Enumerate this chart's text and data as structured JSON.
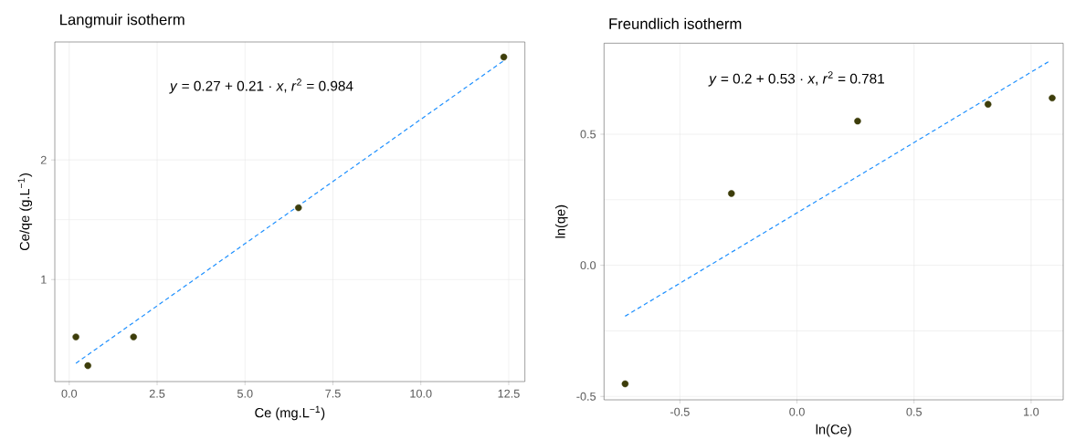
{
  "chart_data": [
    {
      "type": "scatter",
      "title": "Langmuir isotherm",
      "xlabel": "Ce (mg.L$^{−1}$)",
      "ylabel": "Ce/qe (g.L$^{−1}$)",
      "annotations": [
        "*y* = 0.27 + 0.21 · *x*,  *r*$^{2}$ = 0.984"
      ],
      "xlim": [
        -0.41,
        12.96
      ],
      "ylim": [
        0.147,
        2.986
      ],
      "xticks": [
        {
          "value": 0,
          "label": "0.0"
        },
        2.5,
        {
          "value": 5,
          "label": "5.0"
        },
        7.5,
        {
          "value": 10,
          "label": "10.0"
        },
        12.5
      ],
      "yticks": [
        1,
        2
      ],
      "grid": true,
      "series": [
        {
          "color": "#3d3d0a",
          "marker": "circle",
          "x": [
            0.19,
            0.53,
            1.83,
            6.52,
            12.36
          ],
          "values": [
            0.52,
            0.28,
            0.52,
            1.6,
            2.86
          ]
        },
        {
          "type": "line",
          "color": "#1e90ff",
          "line_style": "dashed",
          "x": [
            0.19,
            12.36
          ],
          "values": [
            0.3,
            2.83
          ]
        }
      ]
    },
    {
      "type": "scatter",
      "title": "Freundlich isotherm",
      "xlabel": "ln(Ce)",
      "ylabel": "ln(qe)",
      "annotations": [
        "*y* = 0.2 + 0.53 · *x*,  *r*$^{2}$ = 0.781"
      ],
      "xlim": [
        -0.824,
        1.137
      ],
      "ylim": [
        -0.513,
        0.847
      ],
      "xticks": [
        -0.5,
        {
          "value": 0,
          "label": "0.0"
        },
        0.5,
        {
          "value": 1,
          "label": "1.0"
        }
      ],
      "yticks": [
        -0.5,
        {
          "value": 0,
          "label": "0.0"
        },
        0.5
      ],
      "grid": true,
      "series": [
        {
          "color": "#3d3d0a",
          "marker": "circle",
          "x": [
            -0.734,
            -0.28,
            0.259,
            0.816,
            1.09
          ],
          "values": [
            -0.452,
            0.274,
            0.55,
            0.614,
            0.638
          ]
        },
        {
          "type": "line",
          "color": "#1e90ff",
          "line_style": "dashed",
          "x": [
            -0.734,
            1.079
          ],
          "values": [
            -0.194,
            0.779
          ]
        }
      ]
    }
  ]
}
